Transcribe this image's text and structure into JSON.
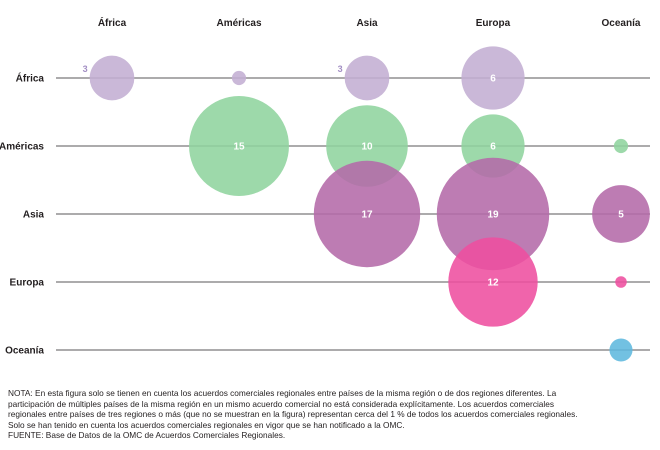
{
  "chart_data": {
    "type": "bubble-matrix",
    "columns": [
      "África",
      "Américas",
      "Asia",
      "Europa",
      "Oceanía"
    ],
    "rows": [
      "África",
      "Américas",
      "Asia",
      "Europa",
      "Oceanía"
    ],
    "points": [
      {
        "row": "África",
        "col": "África",
        "value": 3,
        "label": "3",
        "color": "#c3aed3",
        "label_outside": true
      },
      {
        "row": "África",
        "col": "Américas",
        "value": 0.3,
        "label": "",
        "color": "#c3aed3"
      },
      {
        "row": "África",
        "col": "Asia",
        "value": 3,
        "label": "3",
        "color": "#c3aed3",
        "label_outside": true
      },
      {
        "row": "África",
        "col": "Europa",
        "value": 6,
        "label": "6",
        "color": "#c3aed3"
      },
      {
        "row": "Américas",
        "col": "Américas",
        "value": 15,
        "label": "15",
        "color": "#8fd49e"
      },
      {
        "row": "Américas",
        "col": "Asia",
        "value": 10,
        "label": "10",
        "color": "#8fd49e"
      },
      {
        "row": "Américas",
        "col": "Europa",
        "value": 6,
        "label": "6",
        "color": "#8fd49e"
      },
      {
        "row": "Américas",
        "col": "Oceanía",
        "value": 0.3,
        "label": "",
        "color": "#8fd49e"
      },
      {
        "row": "Asia",
        "col": "Asia",
        "value": 17,
        "label": "17",
        "color": "#b46aa8"
      },
      {
        "row": "Asia",
        "col": "Europa",
        "value": 19,
        "label": "19",
        "color": "#b46aa8"
      },
      {
        "row": "Asia",
        "col": "Oceanía",
        "value": 5,
        "label": "5",
        "color": "#b46aa8"
      },
      {
        "row": "Europa",
        "col": "Europa",
        "value": 12,
        "label": "12",
        "color": "#ee4e9f"
      },
      {
        "row": "Europa",
        "col": "Oceanía",
        "value": 0.2,
        "label": "",
        "color": "#ee4e9f"
      },
      {
        "row": "Oceanía",
        "col": "Oceanía",
        "value": 0.8,
        "label": "",
        "color": "#5fb8de"
      }
    ],
    "small_label_color": "#a38fc4"
  },
  "note": {
    "lines": [
      "NOTA: En esta figura solo se tienen en cuenta los acuerdos comerciales regionales entre países de la misma región o de dos regiones diferentes. La",
      "participación de múltiples países de la misma región en un mismo acuerdo comercial no está considerada explícitamente. Los acuerdos comerciales",
      "regionales entre países de tres regiones o más (que no se muestran en la figura) representan cerca del 1 % de todos los acuerdos comerciales regionales.",
      "Solo se han tenido en cuenta los acuerdos comerciales regionales en vigor que se han notificado a la OMC.",
      "FUENTE: Base de Datos de la OMC de Acuerdos Comerciales Regionales."
    ]
  }
}
